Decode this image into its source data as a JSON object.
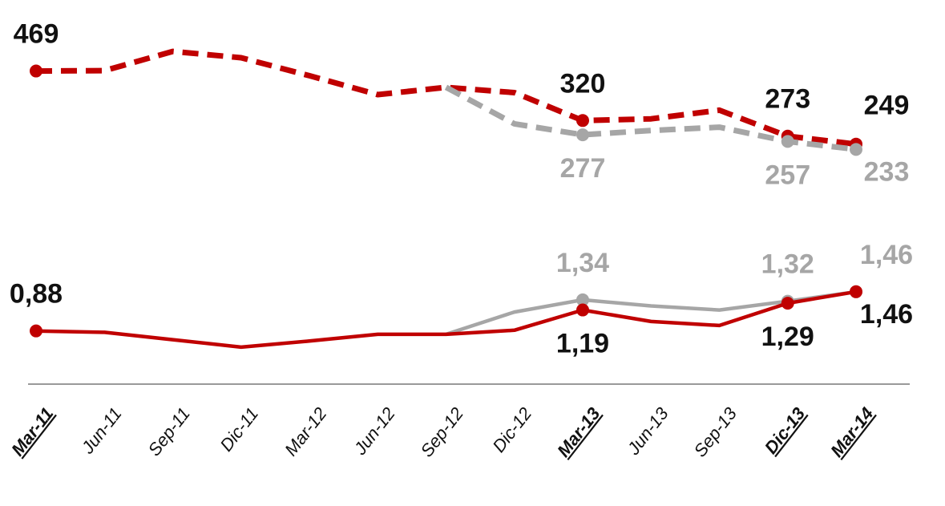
{
  "chart_data": {
    "type": "line",
    "categories": [
      "Mar-11",
      "Jun-11",
      "Sep-11",
      "Dic-11",
      "Mar-12",
      "Jun-12",
      "Sep-12",
      "Dic-12",
      "Mar-13",
      "Jun-13",
      "Sep-13",
      "Dic-13",
      "Mar-14"
    ],
    "emphasized_categories": [
      0,
      8,
      11,
      12
    ],
    "ylim": [
      200,
      550
    ],
    "y2lim": [
      0.2,
      1.6
    ],
    "series": [
      {
        "color": "#c00000",
        "dashed": true,
        "values": [
          469,
          470,
          528,
          509,
          455,
          398,
          420,
          404,
          320,
          325,
          351,
          273,
          249
        ],
        "value_labels": [
          "469",
          null,
          null,
          null,
          null,
          null,
          null,
          null,
          "320",
          null,
          null,
          "273",
          "249"
        ]
      },
      {
        "color": "#a6a6a6",
        "dashed": true,
        "values": [
          null,
          null,
          null,
          null,
          null,
          null,
          420,
          310,
          277,
          290,
          300,
          257,
          233
        ],
        "value_labels": [
          null,
          null,
          null,
          null,
          null,
          null,
          null,
          null,
          "277",
          null,
          null,
          "257",
          "233"
        ]
      },
      {
        "color": "#a6a6a6",
        "dashed": false,
        "axis": "y2",
        "values": [
          null,
          null,
          null,
          null,
          null,
          null,
          0.83,
          1.16,
          1.34,
          1.25,
          1.19,
          1.32,
          1.46
        ],
        "value_labels": [
          null,
          null,
          null,
          null,
          null,
          null,
          null,
          null,
          "1,34",
          null,
          null,
          "1,32",
          "1,46"
        ]
      },
      {
        "color": "#c00000",
        "dashed": false,
        "axis": "y2",
        "values": [
          0.88,
          0.86,
          0.75,
          0.64,
          0.73,
          0.83,
          0.83,
          0.89,
          1.19,
          1.02,
          0.96,
          1.29,
          1.46
        ],
        "value_labels": [
          "0,88",
          null,
          null,
          null,
          null,
          null,
          null,
          null,
          "1,19",
          null,
          null,
          "1,29",
          "1,46"
        ]
      }
    ]
  }
}
